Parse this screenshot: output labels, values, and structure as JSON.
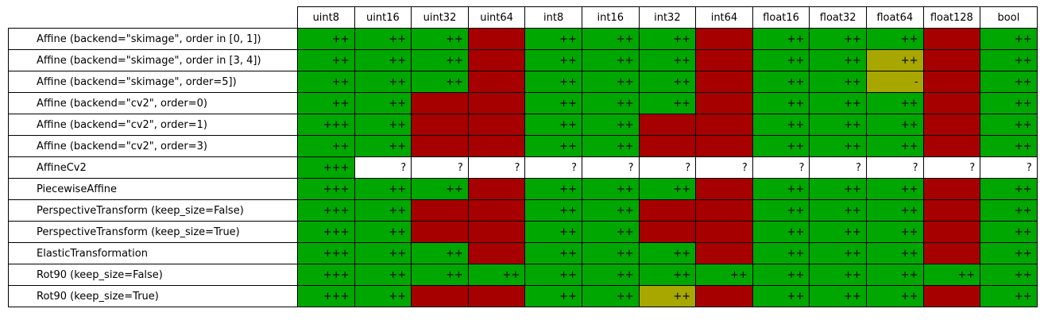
{
  "chart_data": {
    "type": "table",
    "columns": [
      "uint8",
      "uint16",
      "uint32",
      "uint64",
      "int8",
      "int16",
      "int32",
      "int64",
      "float16",
      "float32",
      "float64",
      "float128",
      "bool"
    ],
    "colors": {
      "green": "#00a700",
      "red": "#a70000",
      "yellow": "#a7a700",
      "white": "#ffffff"
    },
    "rows": [
      {
        "label": "Affine (backend=\"skimage\", order in [0, 1])",
        "cells": [
          [
            "++",
            "green"
          ],
          [
            "++",
            "green"
          ],
          [
            "++",
            "green"
          ],
          [
            "",
            "red"
          ],
          [
            "++",
            "green"
          ],
          [
            "++",
            "green"
          ],
          [
            "++",
            "green"
          ],
          [
            "",
            "red"
          ],
          [
            "++",
            "green"
          ],
          [
            "++",
            "green"
          ],
          [
            "++",
            "green"
          ],
          [
            "",
            "red"
          ],
          [
            "++",
            "green"
          ]
        ]
      },
      {
        "label": "Affine (backend=\"skimage\", order in [3, 4])",
        "cells": [
          [
            "++",
            "green"
          ],
          [
            "++",
            "green"
          ],
          [
            "++",
            "green"
          ],
          [
            "",
            "red"
          ],
          [
            "++",
            "green"
          ],
          [
            "++",
            "green"
          ],
          [
            "++",
            "green"
          ],
          [
            "",
            "red"
          ],
          [
            "++",
            "green"
          ],
          [
            "++",
            "green"
          ],
          [
            "++",
            "yellow"
          ],
          [
            "",
            "red"
          ],
          [
            "++",
            "green"
          ]
        ]
      },
      {
        "label": "Affine (backend=\"skimage\", order=5])",
        "cells": [
          [
            "++",
            "green"
          ],
          [
            "++",
            "green"
          ],
          [
            "++",
            "green"
          ],
          [
            "",
            "red"
          ],
          [
            "++",
            "green"
          ],
          [
            "++",
            "green"
          ],
          [
            "++",
            "green"
          ],
          [
            "",
            "red"
          ],
          [
            "++",
            "green"
          ],
          [
            "++",
            "green"
          ],
          [
            "-",
            "yellow"
          ],
          [
            "",
            "red"
          ],
          [
            "++",
            "green"
          ]
        ]
      },
      {
        "label": "Affine (backend=\"cv2\", order=0)",
        "cells": [
          [
            "++",
            "green"
          ],
          [
            "++",
            "green"
          ],
          [
            "",
            "red"
          ],
          [
            "",
            "red"
          ],
          [
            "++",
            "green"
          ],
          [
            "++",
            "green"
          ],
          [
            "++",
            "green"
          ],
          [
            "",
            "red"
          ],
          [
            "++",
            "green"
          ],
          [
            "++",
            "green"
          ],
          [
            "++",
            "green"
          ],
          [
            "",
            "red"
          ],
          [
            "++",
            "green"
          ]
        ]
      },
      {
        "label": "Affine (backend=\"cv2\", order=1)",
        "cells": [
          [
            "+++",
            "green"
          ],
          [
            "++",
            "green"
          ],
          [
            "",
            "red"
          ],
          [
            "",
            "red"
          ],
          [
            "++",
            "green"
          ],
          [
            "++",
            "green"
          ],
          [
            "",
            "red"
          ],
          [
            "",
            "red"
          ],
          [
            "++",
            "green"
          ],
          [
            "++",
            "green"
          ],
          [
            "++",
            "green"
          ],
          [
            "",
            "red"
          ],
          [
            "++",
            "green"
          ]
        ]
      },
      {
        "label": "Affine (backend=\"cv2\", order=3)",
        "cells": [
          [
            "++",
            "green"
          ],
          [
            "++",
            "green"
          ],
          [
            "",
            "red"
          ],
          [
            "",
            "red"
          ],
          [
            "++",
            "green"
          ],
          [
            "++",
            "green"
          ],
          [
            "",
            "red"
          ],
          [
            "",
            "red"
          ],
          [
            "++",
            "green"
          ],
          [
            "++",
            "green"
          ],
          [
            "++",
            "green"
          ],
          [
            "",
            "red"
          ],
          [
            "++",
            "green"
          ]
        ]
      },
      {
        "label": "AffineCv2",
        "cells": [
          [
            "+++",
            "green"
          ],
          [
            "?",
            "white"
          ],
          [
            "?",
            "white"
          ],
          [
            "?",
            "white"
          ],
          [
            "?",
            "white"
          ],
          [
            "?",
            "white"
          ],
          [
            "?",
            "white"
          ],
          [
            "?",
            "white"
          ],
          [
            "?",
            "white"
          ],
          [
            "?",
            "white"
          ],
          [
            "?",
            "white"
          ],
          [
            "?",
            "white"
          ],
          [
            "?",
            "white"
          ]
        ]
      },
      {
        "label": "PiecewiseAffine",
        "cells": [
          [
            "+++",
            "green"
          ],
          [
            "++",
            "green"
          ],
          [
            "++",
            "green"
          ],
          [
            "",
            "red"
          ],
          [
            "++",
            "green"
          ],
          [
            "++",
            "green"
          ],
          [
            "++",
            "green"
          ],
          [
            "",
            "red"
          ],
          [
            "++",
            "green"
          ],
          [
            "++",
            "green"
          ],
          [
            "++",
            "green"
          ],
          [
            "",
            "red"
          ],
          [
            "++",
            "green"
          ]
        ]
      },
      {
        "label": "PerspectiveTransform (keep_size=False)",
        "cells": [
          [
            "+++",
            "green"
          ],
          [
            "++",
            "green"
          ],
          [
            "",
            "red"
          ],
          [
            "",
            "red"
          ],
          [
            "++",
            "green"
          ],
          [
            "++",
            "green"
          ],
          [
            "",
            "red"
          ],
          [
            "",
            "red"
          ],
          [
            "++",
            "green"
          ],
          [
            "++",
            "green"
          ],
          [
            "++",
            "green"
          ],
          [
            "",
            "red"
          ],
          [
            "++",
            "green"
          ]
        ]
      },
      {
        "label": "PerspectiveTransform (keep_size=True)",
        "cells": [
          [
            "+++",
            "green"
          ],
          [
            "++",
            "green"
          ],
          [
            "",
            "red"
          ],
          [
            "",
            "red"
          ],
          [
            "++",
            "green"
          ],
          [
            "++",
            "green"
          ],
          [
            "",
            "red"
          ],
          [
            "",
            "red"
          ],
          [
            "++",
            "green"
          ],
          [
            "++",
            "green"
          ],
          [
            "++",
            "green"
          ],
          [
            "",
            "red"
          ],
          [
            "++",
            "green"
          ]
        ]
      },
      {
        "label": "ElasticTransformation",
        "cells": [
          [
            "+++",
            "green"
          ],
          [
            "++",
            "green"
          ],
          [
            "++",
            "green"
          ],
          [
            "",
            "red"
          ],
          [
            "++",
            "green"
          ],
          [
            "++",
            "green"
          ],
          [
            "++",
            "green"
          ],
          [
            "",
            "red"
          ],
          [
            "++",
            "green"
          ],
          [
            "++",
            "green"
          ],
          [
            "++",
            "green"
          ],
          [
            "",
            "red"
          ],
          [
            "++",
            "green"
          ]
        ]
      },
      {
        "label": "Rot90 (keep_size=False)",
        "cells": [
          [
            "+++",
            "green"
          ],
          [
            "++",
            "green"
          ],
          [
            "++",
            "green"
          ],
          [
            "++",
            "green"
          ],
          [
            "++",
            "green"
          ],
          [
            "++",
            "green"
          ],
          [
            "++",
            "green"
          ],
          [
            "++",
            "green"
          ],
          [
            "++",
            "green"
          ],
          [
            "++",
            "green"
          ],
          [
            "++",
            "green"
          ],
          [
            "++",
            "green"
          ],
          [
            "++",
            "green"
          ]
        ]
      },
      {
        "label": "Rot90 (keep_size=True)",
        "cells": [
          [
            "+++",
            "green"
          ],
          [
            "++",
            "green"
          ],
          [
            "",
            "red"
          ],
          [
            "",
            "red"
          ],
          [
            "++",
            "green"
          ],
          [
            "++",
            "green"
          ],
          [
            "++",
            "yellow"
          ],
          [
            "",
            "red"
          ],
          [
            "++",
            "green"
          ],
          [
            "++",
            "green"
          ],
          [
            "++",
            "green"
          ],
          [
            "",
            "red"
          ],
          [
            "++",
            "green"
          ]
        ]
      }
    ]
  }
}
